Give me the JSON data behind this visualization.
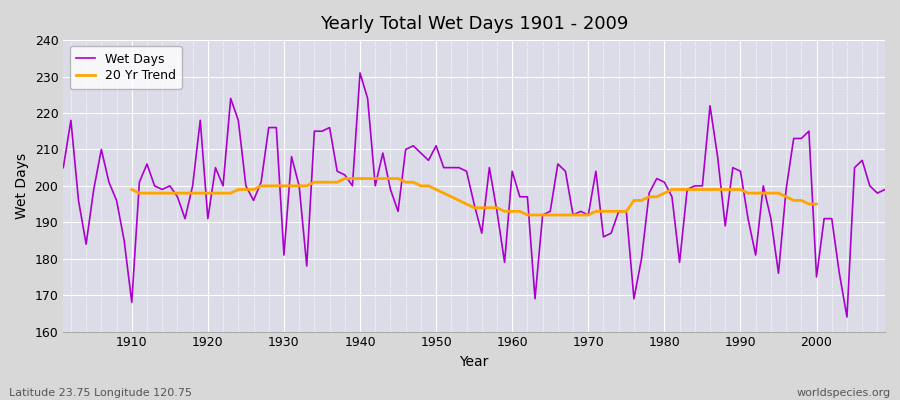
{
  "title": "Yearly Total Wet Days 1901 - 2009",
  "xlabel": "Year",
  "ylabel": "Wet Days",
  "footnote_left": "Latitude 23.75 Longitude 120.75",
  "footnote_right": "worldspecies.org",
  "ylim": [
    160,
    240
  ],
  "xlim": [
    1901,
    2009
  ],
  "yticks": [
    160,
    170,
    180,
    190,
    200,
    210,
    220,
    230,
    240
  ],
  "xticks": [
    1910,
    1920,
    1930,
    1940,
    1950,
    1960,
    1970,
    1980,
    1990,
    2000
  ],
  "wet_days_color": "#aa00cc",
  "trend_color": "#ffa500",
  "years": [
    1901,
    1902,
    1903,
    1904,
    1905,
    1906,
    1907,
    1908,
    1909,
    1910,
    1911,
    1912,
    1913,
    1914,
    1915,
    1916,
    1917,
    1918,
    1919,
    1920,
    1921,
    1922,
    1923,
    1924,
    1925,
    1926,
    1927,
    1928,
    1929,
    1930,
    1931,
    1932,
    1933,
    1934,
    1935,
    1936,
    1937,
    1938,
    1939,
    1940,
    1941,
    1942,
    1943,
    1944,
    1945,
    1946,
    1947,
    1948,
    1949,
    1950,
    1951,
    1952,
    1953,
    1954,
    1955,
    1956,
    1957,
    1958,
    1959,
    1960,
    1961,
    1962,
    1963,
    1964,
    1965,
    1966,
    1967,
    1968,
    1969,
    1970,
    1971,
    1972,
    1973,
    1974,
    1975,
    1976,
    1977,
    1978,
    1979,
    1980,
    1981,
    1982,
    1983,
    1984,
    1985,
    1986,
    1987,
    1988,
    1989,
    1990,
    1991,
    1992,
    1993,
    1994,
    1995,
    1996,
    1997,
    1998,
    1999,
    2000,
    2001,
    2002,
    2003,
    2004,
    2005,
    2006,
    2007,
    2008,
    2009
  ],
  "wet_days": [
    205,
    218,
    196,
    184,
    199,
    210,
    201,
    196,
    185,
    168,
    201,
    206,
    200,
    199,
    200,
    197,
    191,
    200,
    218,
    191,
    205,
    200,
    224,
    218,
    200,
    196,
    201,
    216,
    216,
    181,
    208,
    200,
    178,
    215,
    215,
    216,
    204,
    203,
    200,
    231,
    224,
    200,
    209,
    199,
    193,
    210,
    211,
    209,
    207,
    211,
    205,
    205,
    205,
    204,
    195,
    187,
    205,
    193,
    179,
    204,
    197,
    197,
    169,
    192,
    193,
    206,
    204,
    192,
    193,
    192,
    204,
    186,
    187,
    193,
    193,
    169,
    180,
    198,
    202,
    201,
    197,
    179,
    199,
    200,
    200,
    222,
    208,
    189,
    205,
    204,
    191,
    181,
    200,
    191,
    176,
    199,
    213,
    213,
    215,
    175,
    191,
    191,
    176,
    164,
    205,
    207,
    200,
    198,
    199
  ],
  "trend_years": [
    1910,
    1911,
    1912,
    1913,
    1914,
    1915,
    1916,
    1917,
    1918,
    1919,
    1920,
    1921,
    1922,
    1923,
    1924,
    1925,
    1926,
    1927,
    1928,
    1929,
    1930,
    1931,
    1932,
    1933,
    1934,
    1935,
    1936,
    1937,
    1938,
    1939,
    1940,
    1941,
    1942,
    1943,
    1944,
    1945,
    1946,
    1947,
    1948,
    1949,
    1950,
    1951,
    1952,
    1953,
    1954,
    1955,
    1956,
    1957,
    1958,
    1959,
    1960,
    1961,
    1962,
    1963,
    1964,
    1965,
    1966,
    1967,
    1968,
    1969,
    1970,
    1971,
    1972,
    1973,
    1974,
    1975,
    1976,
    1977,
    1978,
    1979,
    1980,
    1981,
    1982,
    1983,
    1984,
    1985,
    1986,
    1987,
    1988,
    1989,
    1990,
    1991,
    1992,
    1993,
    1994,
    1995,
    1996,
    1997,
    1998,
    1999,
    2000
  ],
  "trend_values": [
    199,
    198,
    198,
    198,
    198,
    198,
    198,
    198,
    198,
    198,
    198,
    198,
    198,
    198,
    199,
    199,
    199,
    200,
    200,
    200,
    200,
    200,
    200,
    200,
    201,
    201,
    201,
    201,
    202,
    202,
    202,
    202,
    202,
    202,
    202,
    202,
    201,
    201,
    200,
    200,
    199,
    198,
    197,
    196,
    195,
    194,
    194,
    194,
    194,
    193,
    193,
    193,
    192,
    192,
    192,
    192,
    192,
    192,
    192,
    192,
    192,
    193,
    193,
    193,
    193,
    193,
    196,
    196,
    197,
    197,
    198,
    199,
    199,
    199,
    199,
    199,
    199,
    199,
    199,
    199,
    199,
    198,
    198,
    198,
    198,
    198,
    197,
    196,
    196,
    195,
    195
  ]
}
